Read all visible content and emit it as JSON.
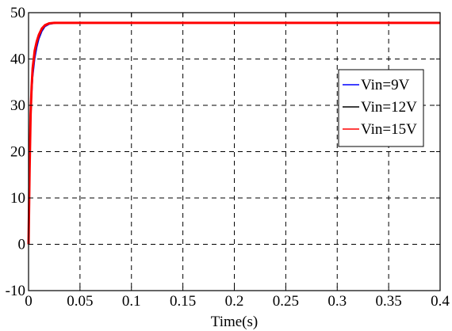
{
  "chart_data": {
    "type": "line",
    "title": "",
    "xlabel": "Time(s)",
    "ylabel": "",
    "xlim": [
      0,
      0.4
    ],
    "ylim": [
      -10,
      50
    ],
    "xticks": [
      0,
      0.05,
      0.1,
      0.15,
      0.2,
      0.25,
      0.3,
      0.35,
      0.4
    ],
    "xtick_labels": [
      "0",
      "0.05",
      "0.1",
      "0.15",
      "0.2",
      "0.25",
      "0.3",
      "0.35",
      "0.4"
    ],
    "yticks": [
      -10,
      0,
      10,
      20,
      30,
      40,
      50
    ],
    "ytick_labels": [
      "-10",
      "0",
      "10",
      "20",
      "30",
      "40",
      "50"
    ],
    "grid": true,
    "legend_position": "right",
    "series": [
      {
        "name": "Vin=9V",
        "color": "#0000ff",
        "x": [
          0,
          0.001,
          0.002,
          0.003,
          0.004,
          0.006,
          0.008,
          0.01,
          0.013,
          0.016,
          0.02,
          0.025,
          0.03,
          0.05,
          0.1,
          0.2,
          0.3,
          0.4
        ],
        "y": [
          0,
          14,
          26,
          32,
          36,
          40,
          42.5,
          44.3,
          46,
          47,
          47.5,
          47.7,
          47.8,
          47.8,
          47.8,
          47.8,
          47.8,
          47.8
        ]
      },
      {
        "name": "Vin=12V",
        "color": "#000000",
        "x": [
          0,
          0.001,
          0.002,
          0.003,
          0.004,
          0.006,
          0.008,
          0.01,
          0.013,
          0.016,
          0.02,
          0.025,
          0.03,
          0.05,
          0.1,
          0.2,
          0.3,
          0.4
        ],
        "y": [
          0,
          15,
          27,
          33,
          37,
          41,
          43.2,
          44.8,
          46.3,
          47.2,
          47.6,
          47.8,
          47.8,
          47.8,
          47.8,
          47.8,
          47.8,
          47.8
        ]
      },
      {
        "name": "Vin=15V",
        "color": "#ff0000",
        "x": [
          0,
          0.001,
          0.002,
          0.003,
          0.004,
          0.006,
          0.008,
          0.01,
          0.013,
          0.016,
          0.02,
          0.025,
          0.03,
          0.05,
          0.1,
          0.2,
          0.3,
          0.4
        ],
        "y": [
          0,
          16,
          28,
          34,
          38,
          41.8,
          43.8,
          45.2,
          46.6,
          47.3,
          47.7,
          47.8,
          47.8,
          47.8,
          47.8,
          47.8,
          47.8,
          47.8
        ]
      }
    ]
  }
}
